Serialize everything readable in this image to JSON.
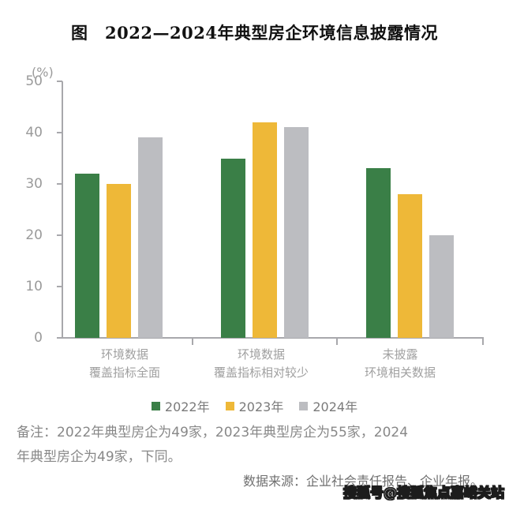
{
  "title": "图　2022—2024年典型房企环境信息披露情况",
  "note": "备注：2022年典型房企为49家，2023年典型房企为55家，2024\n年典型房企为49家，下同。",
  "source": "数据来源：企业社会责任报告、企业年报。",
  "watermark": "搜狐号@搜狐焦点嘉峪关站",
  "colors": {
    "series_2022": "#3a7f47",
    "series_2023": "#eeb838",
    "series_2024": "#bcbdc1",
    "axis": "#a8a8ac",
    "tick_label": "#9a9a9a"
  },
  "chart_data": {
    "type": "bar",
    "title": "图　2022—2024年典型房企环境信息披露情况",
    "unit_label": "(%)",
    "ylabel": "",
    "xlabel": "",
    "ylim": [
      0,
      50
    ],
    "yticks": [
      0,
      10,
      20,
      30,
      40,
      50
    ],
    "grid": false,
    "legend_position": "bottom",
    "categories": [
      "环境数据\n覆盖指标全面",
      "环境数据\n覆盖指标相对较少",
      "未披露\n环境相关数据"
    ],
    "series": [
      {
        "name": "2022年",
        "color": "#3a7f47",
        "values": [
          32,
          35,
          33
        ]
      },
      {
        "name": "2023年",
        "color": "#eeb838",
        "values": [
          30,
          42,
          28
        ]
      },
      {
        "name": "2024年",
        "color": "#bcbdc1",
        "values": [
          39,
          41,
          20
        ]
      }
    ]
  }
}
